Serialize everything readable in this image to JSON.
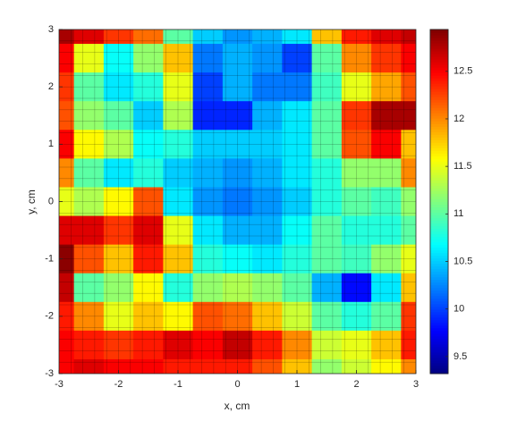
{
  "chart_data": {
    "type": "heatmap",
    "xlabel": "x, cm",
    "ylabel": "y, cm",
    "x": [
      -3,
      -2.5,
      -2,
      -1.5,
      -1,
      -0.5,
      0,
      0.5,
      1,
      1.5,
      2,
      2.5,
      3
    ],
    "y": [
      3,
      2.5,
      2,
      1.5,
      1,
      0.5,
      0,
      -0.5,
      -1,
      -1.5,
      -2,
      -2.5,
      -3
    ],
    "z": [
      [
        12.8,
        12.6,
        12.3,
        12.1,
        11.0,
        10.5,
        10.3,
        10.4,
        10.6,
        11.8,
        12.4,
        12.6,
        12.7
      ],
      [
        12.5,
        11.5,
        10.7,
        11.2,
        11.8,
        10.2,
        10.4,
        10.3,
        10.0,
        11.0,
        12.0,
        12.3,
        12.5
      ],
      [
        12.3,
        11.0,
        10.6,
        10.8,
        11.5,
        10.0,
        10.4,
        10.2,
        10.2,
        10.9,
        11.5,
        11.9,
        12.2
      ],
      [
        12.2,
        11.2,
        11.0,
        10.5,
        11.3,
        9.9,
        9.9,
        10.4,
        10.6,
        11.0,
        12.3,
        12.8,
        12.8
      ],
      [
        12.5,
        11.6,
        11.3,
        10.7,
        10.8,
        10.5,
        10.5,
        10.5,
        10.6,
        11.0,
        12.2,
        12.5,
        11.8
      ],
      [
        12.0,
        11.0,
        10.6,
        10.8,
        10.5,
        10.4,
        10.3,
        10.4,
        10.6,
        10.8,
        11.2,
        11.2,
        12.0
      ],
      [
        11.5,
        11.3,
        11.6,
        12.2,
        10.6,
        10.3,
        10.2,
        10.3,
        10.5,
        10.8,
        11.0,
        10.9,
        11.2
      ],
      [
        12.6,
        12.6,
        12.3,
        12.6,
        11.5,
        10.6,
        10.4,
        10.4,
        10.7,
        11.0,
        10.8,
        10.8,
        11.0
      ],
      [
        12.9,
        12.2,
        11.8,
        12.4,
        11.8,
        10.8,
        10.7,
        10.6,
        10.8,
        11.0,
        10.9,
        11.2,
        11.5
      ],
      [
        12.7,
        11.0,
        11.2,
        11.6,
        10.8,
        11.2,
        11.3,
        11.2,
        11.0,
        10.4,
        9.8,
        10.6,
        11.8
      ],
      [
        12.4,
        12.0,
        11.5,
        11.8,
        11.6,
        12.2,
        12.1,
        11.8,
        11.4,
        11.0,
        10.8,
        11.0,
        12.3
      ],
      [
        12.5,
        12.4,
        12.3,
        12.4,
        12.6,
        12.5,
        12.7,
        12.4,
        12.0,
        11.4,
        11.5,
        11.8,
        12.4
      ],
      [
        12.5,
        12.6,
        12.5,
        12.5,
        12.4,
        12.4,
        12.4,
        12.2,
        11.8,
        11.2,
        11.4,
        11.6,
        12.0
      ]
    ],
    "xlim": [
      -3,
      3
    ],
    "ylim": [
      -3,
      3
    ],
    "xticks": [
      -3,
      -2,
      -1,
      0,
      1,
      2,
      3
    ],
    "yticks": [
      -3,
      -2,
      -1,
      0,
      1,
      2,
      3
    ],
    "colormap": "jet",
    "clim": [
      9.32,
      12.94
    ],
    "colorbar_ticks": [
      9.5,
      10,
      10.5,
      11,
      11.5,
      12,
      12.5
    ]
  }
}
